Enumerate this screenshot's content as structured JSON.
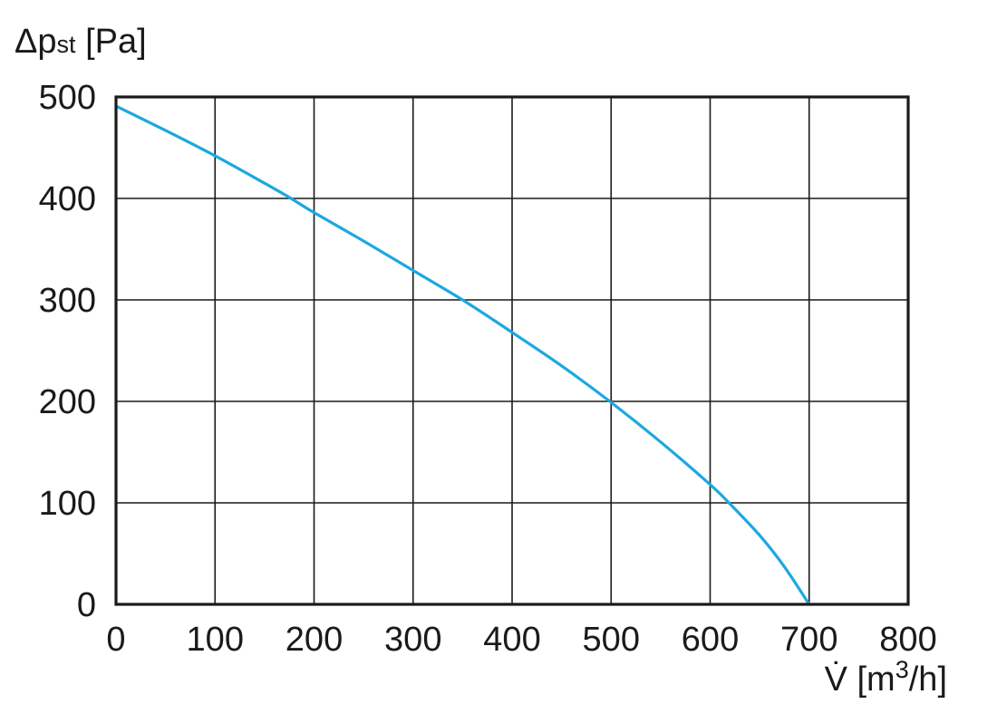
{
  "chart_data": {
    "type": "line",
    "xlabel": "V̇ [m³/h]",
    "ylabel": "Δpst [Pa]",
    "xlabel_parts": {
      "symbol": "V̇",
      "unit_open": " [m",
      "unit_sup": "3",
      "unit_close": "/h]"
    },
    "ylabel_parts": {
      "symbol": "Δp",
      "sub": "st",
      "unit": " [Pa]"
    },
    "xlim": [
      0,
      800
    ],
    "ylim": [
      0,
      500
    ],
    "xticks": [
      0,
      100,
      200,
      300,
      400,
      500,
      600,
      700,
      800
    ],
    "yticks": [
      0,
      100,
      200,
      300,
      400,
      500
    ],
    "grid": true,
    "series": [
      {
        "color": "#1ca8e0",
        "x": [
          0,
          50,
          100,
          150,
          175,
          200,
          250,
          300,
          350,
          400,
          450,
          500,
          550,
          600,
          620,
          650,
          675,
          700
        ],
        "y": [
          491,
          467,
          442,
          415,
          401,
          386,
          358,
          329,
          300,
          268,
          235,
          199,
          160,
          118,
          99,
          68,
          37,
          0
        ]
      }
    ]
  }
}
